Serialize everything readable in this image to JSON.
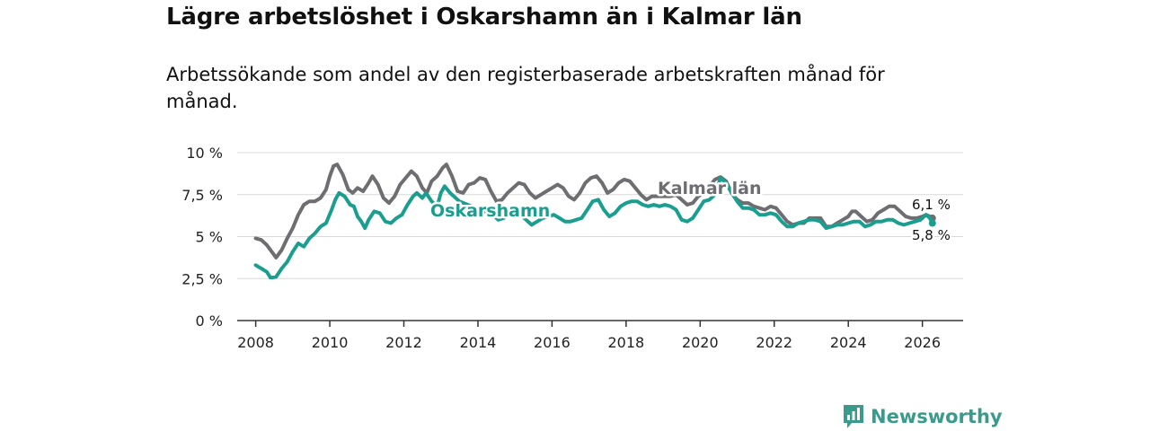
{
  "title": "Lägre arbetslöshet i Oskarshamn än i Kalmar län",
  "subtitle": "Arbetssökande som andel av den registerbaserade arbetskraften månad för månad.",
  "brand": {
    "name": "Newsworthy",
    "color": "#3a9a8c",
    "icon": "newsworthy-logo-icon"
  },
  "chart_data": {
    "type": "line",
    "xlim": [
      2007.5,
      2027.1
    ],
    "ylim": [
      0,
      10
    ],
    "yticks": [
      0,
      2.5,
      5,
      7.5,
      10
    ],
    "ytick_labels": [
      "0 %",
      "2,5 %",
      "5 %",
      "7,5 %",
      "10 %"
    ],
    "xticks": [
      2008,
      2010,
      2012,
      2014,
      2016,
      2018,
      2020,
      2022,
      2024,
      2026
    ],
    "xtick_labels": [
      "2008",
      "2010",
      "2012",
      "2014",
      "2016",
      "2018",
      "2020",
      "2022",
      "2024",
      "2026"
    ],
    "grid": true,
    "series": [
      {
        "name": "Kalmar län",
        "color": "#6e6e72",
        "end_label": "6,1 %",
        "points": [
          [
            2008.0,
            4.9
          ],
          [
            2008.15,
            4.8
          ],
          [
            2008.3,
            4.5
          ],
          [
            2008.45,
            4.05
          ],
          [
            2008.55,
            3.75
          ],
          [
            2008.7,
            4.2
          ],
          [
            2008.85,
            4.9
          ],
          [
            2009.0,
            5.5
          ],
          [
            2009.15,
            6.3
          ],
          [
            2009.3,
            6.9
          ],
          [
            2009.45,
            7.1
          ],
          [
            2009.6,
            7.1
          ],
          [
            2009.75,
            7.3
          ],
          [
            2009.9,
            7.8
          ],
          [
            2010.0,
            8.6
          ],
          [
            2010.1,
            9.2
          ],
          [
            2010.2,
            9.3
          ],
          [
            2010.35,
            8.7
          ],
          [
            2010.5,
            7.8
          ],
          [
            2010.62,
            7.6
          ],
          [
            2010.75,
            7.9
          ],
          [
            2010.9,
            7.7
          ],
          [
            2011.05,
            8.2
          ],
          [
            2011.15,
            8.6
          ],
          [
            2011.3,
            8.1
          ],
          [
            2011.45,
            7.3
          ],
          [
            2011.6,
            7.0
          ],
          [
            2011.75,
            7.4
          ],
          [
            2011.9,
            8.1
          ],
          [
            2012.05,
            8.5
          ],
          [
            2012.2,
            8.9
          ],
          [
            2012.35,
            8.6
          ],
          [
            2012.5,
            7.9
          ],
          [
            2012.62,
            7.6
          ],
          [
            2012.75,
            8.3
          ],
          [
            2012.9,
            8.6
          ],
          [
            2013.05,
            9.1
          ],
          [
            2013.15,
            9.3
          ],
          [
            2013.3,
            8.6
          ],
          [
            2013.45,
            7.7
          ],
          [
            2013.6,
            7.6
          ],
          [
            2013.75,
            8.1
          ],
          [
            2013.9,
            8.2
          ],
          [
            2014.05,
            8.5
          ],
          [
            2014.2,
            8.4
          ],
          [
            2014.35,
            7.7
          ],
          [
            2014.5,
            7.1
          ],
          [
            2014.65,
            7.2
          ],
          [
            2014.8,
            7.6
          ],
          [
            2014.95,
            7.9
          ],
          [
            2015.1,
            8.2
          ],
          [
            2015.25,
            8.1
          ],
          [
            2015.4,
            7.6
          ],
          [
            2015.55,
            7.3
          ],
          [
            2015.7,
            7.5
          ],
          [
            2015.85,
            7.7
          ],
          [
            2016.0,
            7.9
          ],
          [
            2016.15,
            8.1
          ],
          [
            2016.3,
            7.9
          ],
          [
            2016.45,
            7.4
          ],
          [
            2016.6,
            7.2
          ],
          [
            2016.75,
            7.6
          ],
          [
            2016.9,
            8.2
          ],
          [
            2017.05,
            8.5
          ],
          [
            2017.2,
            8.6
          ],
          [
            2017.35,
            8.2
          ],
          [
            2017.5,
            7.6
          ],
          [
            2017.65,
            7.8
          ],
          [
            2017.8,
            8.2
          ],
          [
            2017.95,
            8.4
          ],
          [
            2018.1,
            8.3
          ],
          [
            2018.25,
            7.9
          ],
          [
            2018.4,
            7.5
          ],
          [
            2018.55,
            7.2
          ],
          [
            2018.7,
            7.4
          ],
          [
            2019.2,
            7.4
          ],
          [
            2019.35,
            7.5
          ],
          [
            2019.5,
            7.2
          ],
          [
            2019.65,
            6.9
          ],
          [
            2019.8,
            7.0
          ],
          [
            2019.95,
            7.4
          ],
          [
            2020.1,
            7.6
          ],
          [
            2020.25,
            8.0
          ],
          [
            2020.4,
            8.4
          ],
          [
            2020.55,
            8.55
          ],
          [
            2020.7,
            8.3
          ],
          [
            2020.85,
            7.6
          ],
          [
            2021.0,
            7.2
          ],
          [
            2021.15,
            7.0
          ],
          [
            2021.3,
            7.0
          ],
          [
            2021.45,
            6.8
          ],
          [
            2021.6,
            6.7
          ],
          [
            2021.75,
            6.6
          ],
          [
            2021.9,
            6.8
          ],
          [
            2022.05,
            6.7
          ],
          [
            2022.2,
            6.3
          ],
          [
            2022.35,
            5.9
          ],
          [
            2022.5,
            5.7
          ],
          [
            2022.65,
            5.8
          ],
          [
            2022.8,
            5.8
          ],
          [
            2022.95,
            6.1
          ],
          [
            2023.1,
            6.1
          ],
          [
            2023.25,
            6.1
          ],
          [
            2023.4,
            5.6
          ],
          [
            2023.55,
            5.6
          ],
          [
            2023.7,
            5.8
          ],
          [
            2023.85,
            6.0
          ],
          [
            2024.0,
            6.2
          ],
          [
            2024.1,
            6.5
          ],
          [
            2024.2,
            6.5
          ],
          [
            2024.35,
            6.2
          ],
          [
            2024.5,
            5.9
          ],
          [
            2024.65,
            6.0
          ],
          [
            2024.8,
            6.4
          ],
          [
            2024.95,
            6.6
          ],
          [
            2025.1,
            6.8
          ],
          [
            2025.25,
            6.8
          ],
          [
            2025.4,
            6.5
          ],
          [
            2025.55,
            6.2
          ],
          [
            2025.7,
            6.1
          ],
          [
            2025.85,
            6.1
          ],
          [
            2026.0,
            6.2
          ],
          [
            2026.1,
            6.3
          ],
          [
            2026.2,
            6.2
          ],
          [
            2026.27,
            6.1
          ]
        ]
      },
      {
        "name": "Oskarshamn",
        "color": "#1a9e8f",
        "end_label": "5,8 %",
        "points": [
          [
            2008.0,
            3.3
          ],
          [
            2008.15,
            3.1
          ],
          [
            2008.3,
            2.9
          ],
          [
            2008.4,
            2.55
          ],
          [
            2008.55,
            2.6
          ],
          [
            2008.7,
            3.1
          ],
          [
            2008.85,
            3.5
          ],
          [
            2009.0,
            4.1
          ],
          [
            2009.15,
            4.6
          ],
          [
            2009.3,
            4.4
          ],
          [
            2009.45,
            4.9
          ],
          [
            2009.6,
            5.2
          ],
          [
            2009.75,
            5.6
          ],
          [
            2009.9,
            5.8
          ],
          [
            2010.05,
            6.6
          ],
          [
            2010.15,
            7.2
          ],
          [
            2010.25,
            7.6
          ],
          [
            2010.4,
            7.4
          ],
          [
            2010.55,
            6.9
          ],
          [
            2010.65,
            6.8
          ],
          [
            2010.75,
            6.2
          ],
          [
            2010.85,
            5.9
          ],
          [
            2010.95,
            5.5
          ],
          [
            2011.05,
            6.0
          ],
          [
            2011.2,
            6.5
          ],
          [
            2011.35,
            6.4
          ],
          [
            2011.5,
            5.9
          ],
          [
            2011.65,
            5.8
          ],
          [
            2011.8,
            6.1
          ],
          [
            2011.95,
            6.3
          ],
          [
            2012.1,
            6.9
          ],
          [
            2012.25,
            7.4
          ],
          [
            2012.35,
            7.6
          ],
          [
            2012.5,
            7.3
          ],
          [
            2012.6,
            7.6
          ],
          [
            2012.75,
            7.1
          ],
          [
            2012.9,
            6.8
          ],
          [
            2013.0,
            7.6
          ],
          [
            2013.1,
            8.0
          ],
          [
            2013.25,
            7.6
          ],
          [
            2013.35,
            7.4
          ],
          [
            2013.5,
            7.1
          ],
          [
            2014.4,
            6.3
          ],
          [
            2014.55,
            6.0
          ],
          [
            2014.7,
            6.1
          ],
          [
            2014.85,
            6.4
          ],
          [
            2015.0,
            6.6
          ],
          [
            2015.15,
            6.3
          ],
          [
            2015.3,
            6.0
          ],
          [
            2015.45,
            5.7
          ],
          [
            2015.6,
            5.9
          ],
          [
            2015.75,
            6.1
          ],
          [
            2015.9,
            6.2
          ],
          [
            2016.05,
            6.3
          ],
          [
            2016.2,
            6.1
          ],
          [
            2016.35,
            5.9
          ],
          [
            2016.5,
            5.9
          ],
          [
            2016.65,
            6.0
          ],
          [
            2016.8,
            6.1
          ],
          [
            2016.95,
            6.6
          ],
          [
            2017.1,
            7.1
          ],
          [
            2017.25,
            7.2
          ],
          [
            2017.4,
            6.6
          ],
          [
            2017.55,
            6.2
          ],
          [
            2017.7,
            6.4
          ],
          [
            2017.85,
            6.8
          ],
          [
            2018.0,
            7.0
          ],
          [
            2018.15,
            7.1
          ],
          [
            2018.3,
            7.1
          ],
          [
            2018.45,
            6.9
          ],
          [
            2018.6,
            6.8
          ],
          [
            2018.75,
            6.9
          ],
          [
            2018.9,
            6.8
          ],
          [
            2019.05,
            6.9
          ],
          [
            2019.2,
            6.8
          ],
          [
            2019.35,
            6.6
          ],
          [
            2019.5,
            6.0
          ],
          [
            2019.65,
            5.9
          ],
          [
            2019.8,
            6.1
          ],
          [
            2019.95,
            6.6
          ],
          [
            2020.1,
            7.1
          ],
          [
            2020.25,
            7.2
          ],
          [
            2020.4,
            7.5
          ],
          [
            2020.55,
            8.5
          ],
          [
            2020.7,
            8.2
          ],
          [
            2020.85,
            7.6
          ],
          [
            2021.0,
            7.1
          ],
          [
            2021.15,
            6.7
          ],
          [
            2021.3,
            6.7
          ],
          [
            2021.45,
            6.6
          ],
          [
            2021.6,
            6.3
          ],
          [
            2021.75,
            6.3
          ],
          [
            2021.9,
            6.4
          ],
          [
            2022.05,
            6.3
          ],
          [
            2022.2,
            5.9
          ],
          [
            2022.35,
            5.6
          ],
          [
            2022.5,
            5.6
          ],
          [
            2022.65,
            5.8
          ],
          [
            2022.8,
            5.9
          ],
          [
            2022.95,
            6.0
          ],
          [
            2023.1,
            6.0
          ],
          [
            2023.25,
            5.9
          ],
          [
            2023.4,
            5.5
          ],
          [
            2023.55,
            5.6
          ],
          [
            2023.7,
            5.7
          ],
          [
            2023.85,
            5.7
          ],
          [
            2024.0,
            5.8
          ],
          [
            2024.15,
            5.9
          ],
          [
            2024.3,
            5.9
          ],
          [
            2024.45,
            5.6
          ],
          [
            2024.6,
            5.7
          ],
          [
            2024.75,
            5.9
          ],
          [
            2024.9,
            5.9
          ],
          [
            2025.05,
            6.0
          ],
          [
            2025.2,
            6.0
          ],
          [
            2025.35,
            5.8
          ],
          [
            2025.5,
            5.7
          ],
          [
            2025.65,
            5.8
          ],
          [
            2025.8,
            5.9
          ],
          [
            2025.95,
            6.0
          ],
          [
            2026.1,
            6.3
          ],
          [
            2026.2,
            6.1
          ],
          [
            2026.27,
            5.8
          ]
        ]
      }
    ]
  }
}
